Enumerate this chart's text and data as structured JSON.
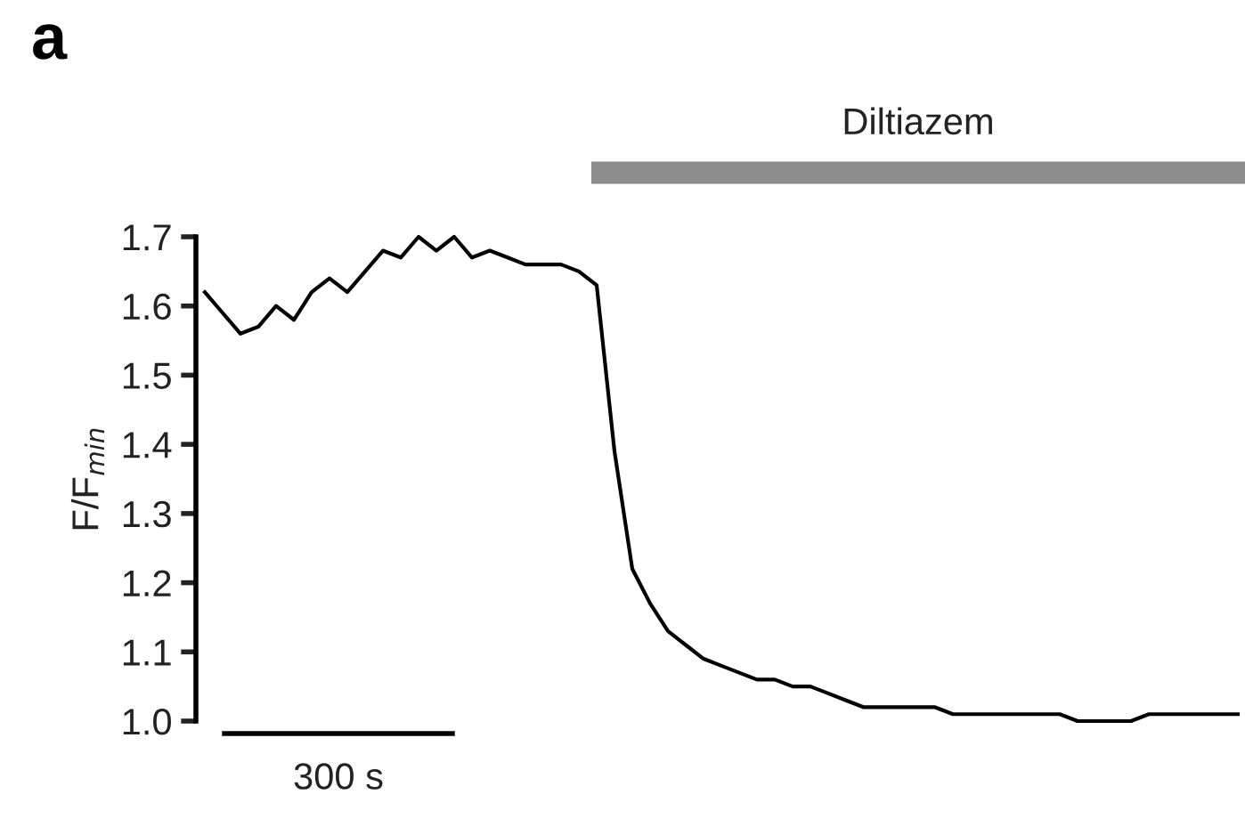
{
  "chart_data": {
    "type": "line",
    "ylabel": "F/F$_{min}$",
    "xlabel": "300 s",
    "annotations": [
      "a",
      "Diltiazem"
    ],
    "categories": [
      null,
      null,
      null,
      null,
      null,
      null,
      null,
      null,
      null,
      null,
      null,
      null,
      null,
      null,
      null,
      null,
      null,
      null,
      null,
      null,
      null,
      null,
      null,
      null,
      null,
      null,
      null,
      null,
      null,
      null,
      null,
      null,
      null,
      null,
      null,
      null,
      null,
      null,
      null,
      null,
      null,
      null,
      null,
      null,
      null,
      null,
      null,
      null,
      null,
      null,
      null,
      null,
      null,
      null,
      null,
      null,
      null,
      null,
      null
    ],
    "series": [
      {
        "color": "#000000",
        "values": [
          1.62,
          1.59,
          1.56,
          1.57,
          1.6,
          1.58,
          1.62,
          1.64,
          1.62,
          1.65,
          1.68,
          1.67,
          1.7,
          1.68,
          1.7,
          1.67,
          1.68,
          1.67,
          1.66,
          1.66,
          1.66,
          1.65,
          1.63,
          1.39,
          1.22,
          1.17,
          1.13,
          1.11,
          1.09,
          1.08,
          1.07,
          1.06,
          1.06,
          1.05,
          1.05,
          1.04,
          1.03,
          1.02,
          1.02,
          1.02,
          1.02,
          1.02,
          1.01,
          1.01,
          1.01,
          1.01,
          1.01,
          1.01,
          1.01,
          1.0,
          1.0,
          1.0,
          1.0,
          1.01,
          1.01,
          1.01,
          1.01,
          1.01,
          1.01
        ]
      }
    ],
    "ylim": [
      1.0,
      1.7
    ],
    "yticks": [
      {
        "value": 1.0,
        "label": "1.0"
      },
      1.1,
      1.2,
      1.3,
      1.4,
      1.5,
      1.6,
      1.7
    ],
    "tick_labels": "y",
    "line_style": "solid"
  }
}
